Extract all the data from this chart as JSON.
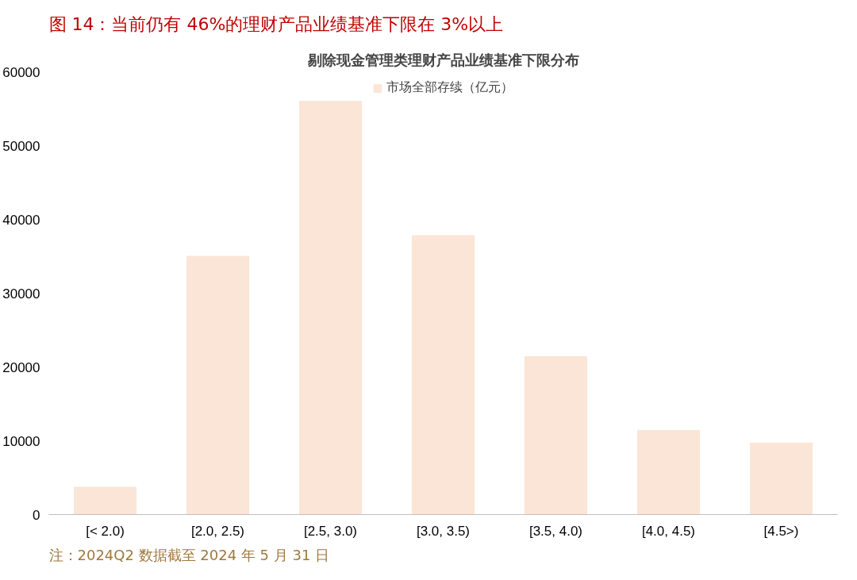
{
  "chart_data": {
    "type": "bar",
    "title": "图 14：当前仍有 46%的理财产品业绩基准下限在 3%以上",
    "subtitle": "剔除现金管理类理财产品业绩基准下限分布",
    "categories": [
      "[< 2.0)",
      "[2.0, 2.5)",
      "[2.5, 3.0)",
      "[3.0, 3.5)",
      "[3.5, 4.0)",
      "[4.0, 4.5)",
      "[4.5>)"
    ],
    "series": [
      {
        "name": "市场全部存续（亿元）",
        "color": "#fbe5d6",
        "values": [
          3700,
          35000,
          56000,
          37800,
          21400,
          11400,
          9700
        ]
      }
    ],
    "ylim": [
      0,
      60000
    ],
    "yticks": [
      0,
      10000,
      20000,
      30000,
      40000,
      50000,
      60000
    ],
    "grid": false,
    "legend": "top",
    "annotations": [
      "注：2024Q2 数据截至 2024 年 5 月 31 日"
    ]
  }
}
